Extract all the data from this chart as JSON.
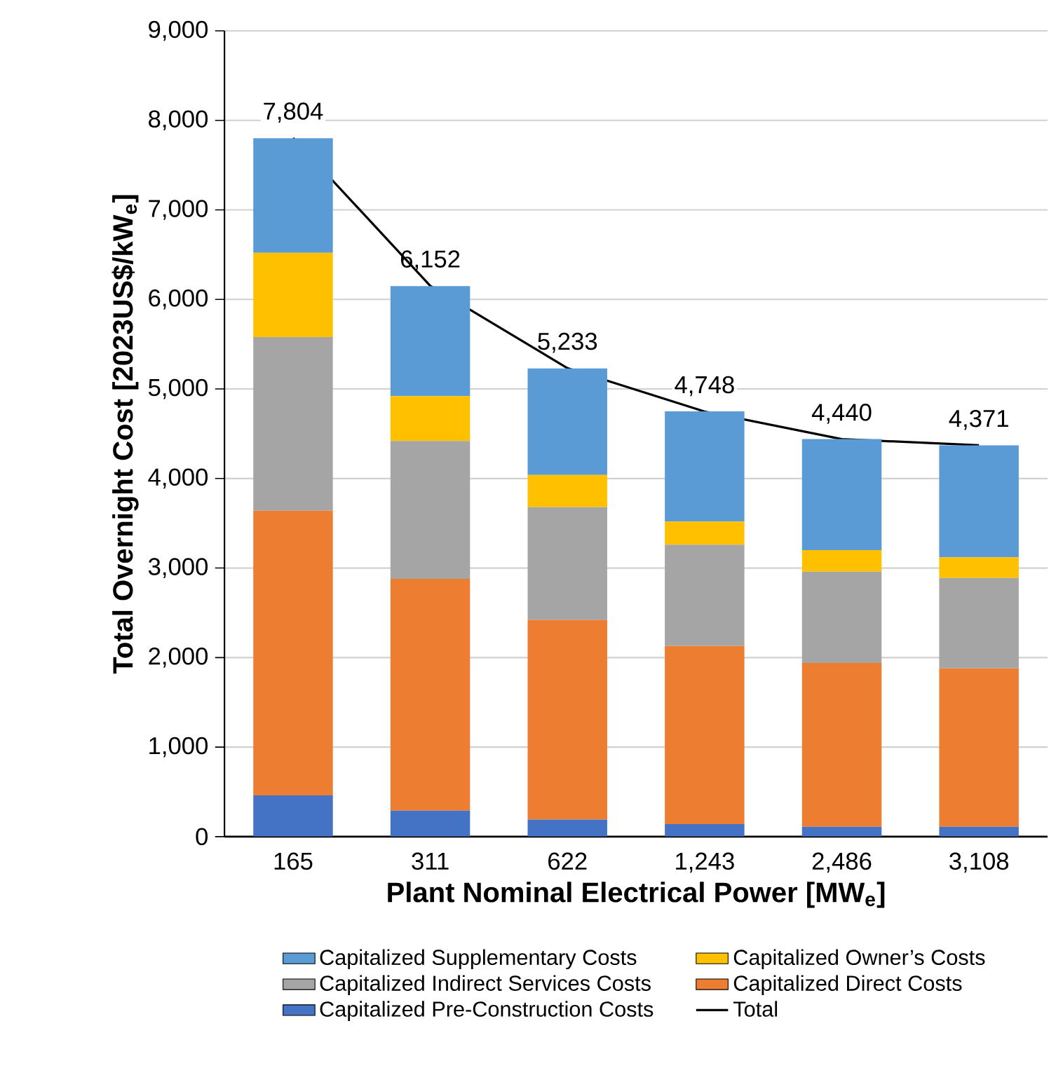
{
  "chart_data": {
    "type": "bar",
    "stacked": true,
    "xlabel": "Plant Nominal Electrical Power [MW$_{e}$]",
    "ylabel": "Total Overnight Cost [2023US$/kW$_{e}$]",
    "categories": [
      "165",
      "311",
      "622",
      "1,243",
      "2,486",
      "3,108"
    ],
    "series": [
      {
        "name": "Capitalized Pre-Construction Costs",
        "color": "#4472c4",
        "values": [
          460,
          290,
          190,
          140,
          110,
          110
        ]
      },
      {
        "name": "Capitalized Direct Costs",
        "color": "#ed7d31",
        "values": [
          3180,
          2590,
          2230,
          1990,
          1830,
          1770
        ]
      },
      {
        "name": "Capitalized Indirect Services Costs",
        "color": "#a5a5a5",
        "values": [
          1940,
          1540,
          1260,
          1130,
          1020,
          1010
        ]
      },
      {
        "name": "Capitalized Owner’s Costs",
        "color": "#ffc000",
        "values": [
          940,
          500,
          360,
          260,
          240,
          230
        ]
      },
      {
        "name": "Capitalized Supplementary Costs",
        "color": "#5b9bd5",
        "values": [
          1280,
          1230,
          1190,
          1230,
          1240,
          1250
        ]
      },
      {
        "name": "Total",
        "type": "line",
        "color": "#000000",
        "values": [
          7804,
          6152,
          5233,
          4748,
          4440,
          4371
        ],
        "value_labels": [
          "7,804",
          "6,152",
          "5,233",
          "4,748",
          "4,440",
          "4,371"
        ]
      }
    ],
    "ylim": [
      0,
      9000
    ],
    "yticks": [
      {
        "value": 0,
        "label": "0"
      },
      {
        "value": 1000,
        "label": "1,000"
      },
      {
        "value": 2000,
        "label": "2,000"
      },
      {
        "value": 3000,
        "label": "3,000"
      },
      {
        "value": 4000,
        "label": "4,000"
      },
      {
        "value": 5000,
        "label": "5,000"
      },
      {
        "value": 6000,
        "label": "6,000"
      },
      {
        "value": 7000,
        "label": "7,000"
      },
      {
        "value": 8000,
        "label": "8,000"
      },
      {
        "value": 9000,
        "label": "9,000"
      }
    ],
    "grid": "y",
    "legend": "bottom",
    "marker": "none"
  }
}
